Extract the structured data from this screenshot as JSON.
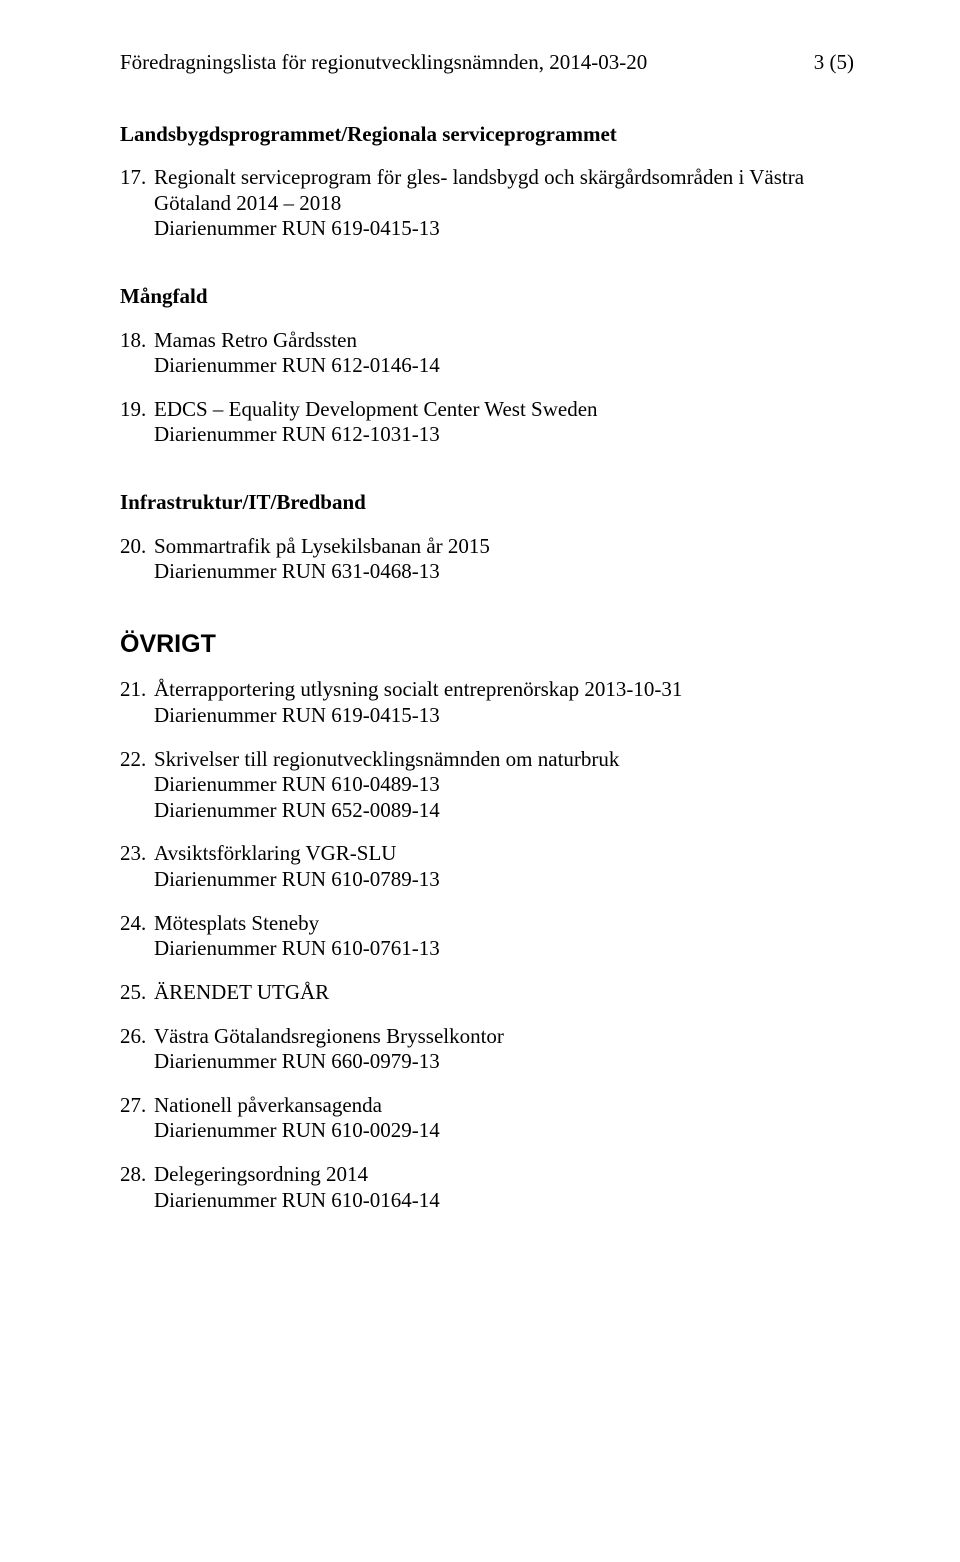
{
  "header": {
    "title": "Föredragningslista för regionutvecklingsnämnden, 2014-03-20",
    "page": "3 (5)"
  },
  "sections": [
    {
      "heading": "Landsbygdsprogrammet/Regionala serviceprogrammet",
      "underline": false,
      "items": [
        {
          "num": "17.",
          "title_lines": [
            "Regionalt serviceprogram för gles- landsbygd och skärgårdsområden i Västra",
            "Götaland 2014 – 2018"
          ],
          "diaries": [
            "Diarienummer RUN 619-0415-13"
          ]
        }
      ]
    },
    {
      "heading": "Mångfald",
      "underline": false,
      "items": [
        {
          "num": "18.",
          "title_lines": [
            "Mamas Retro Gårdssten"
          ],
          "diaries": [
            "Diarienummer RUN 612-0146-14"
          ]
        },
        {
          "num": "19.",
          "title_lines": [
            "EDCS – Equality Development Center West Sweden"
          ],
          "diaries": [
            "Diarienummer RUN 612-1031-13"
          ]
        }
      ]
    },
    {
      "heading": "Infrastruktur/IT/Bredband",
      "underline": false,
      "items": [
        {
          "num": "20.",
          "title_lines": [
            "Sommartrafik på Lysekilsbanan år 2015"
          ],
          "diaries": [
            "Diarienummer RUN 631-0468-13"
          ]
        }
      ]
    },
    {
      "heading": "ÖVRIGT",
      "ovrigt": true,
      "items": [
        {
          "num": "21.",
          "title_lines": [
            "Återrapportering utlysning socialt entreprenörskap 2013-10-31"
          ],
          "diaries": [
            "Diarienummer RUN 619-0415-13"
          ]
        },
        {
          "num": "22.",
          "title_lines": [
            "Skrivelser till regionutvecklingsnämnden om naturbruk"
          ],
          "diaries": [
            "Diarienummer RUN 610-0489-13",
            "Diarienummer RUN 652-0089-14"
          ]
        },
        {
          "num": "23.",
          "title_lines": [
            "Avsiktsförklaring VGR-SLU"
          ],
          "diaries": [
            "Diarienummer RUN 610-0789-13"
          ]
        },
        {
          "num": "24.",
          "title_lines": [
            "Mötesplats Steneby"
          ],
          "diaries": [
            "Diarienummer RUN 610-0761-13"
          ]
        },
        {
          "num": "25.",
          "title_lines": [
            "ÄRENDET UTGÅR"
          ],
          "diaries": []
        },
        {
          "num": "26.",
          "title_lines": [
            "Västra Götalandsregionens Brysselkontor"
          ],
          "diaries": [
            "Diarienummer RUN 660-0979-13"
          ]
        },
        {
          "num": "27.",
          "title_lines": [
            "Nationell påverkansagenda"
          ],
          "diaries": [
            "Diarienummer RUN 610-0029-14"
          ]
        },
        {
          "num": "28.",
          "title_lines": [
            "Delegeringsordning 2014"
          ],
          "diaries": [
            "Diarienummer RUN 610-0164-14"
          ]
        }
      ]
    }
  ]
}
